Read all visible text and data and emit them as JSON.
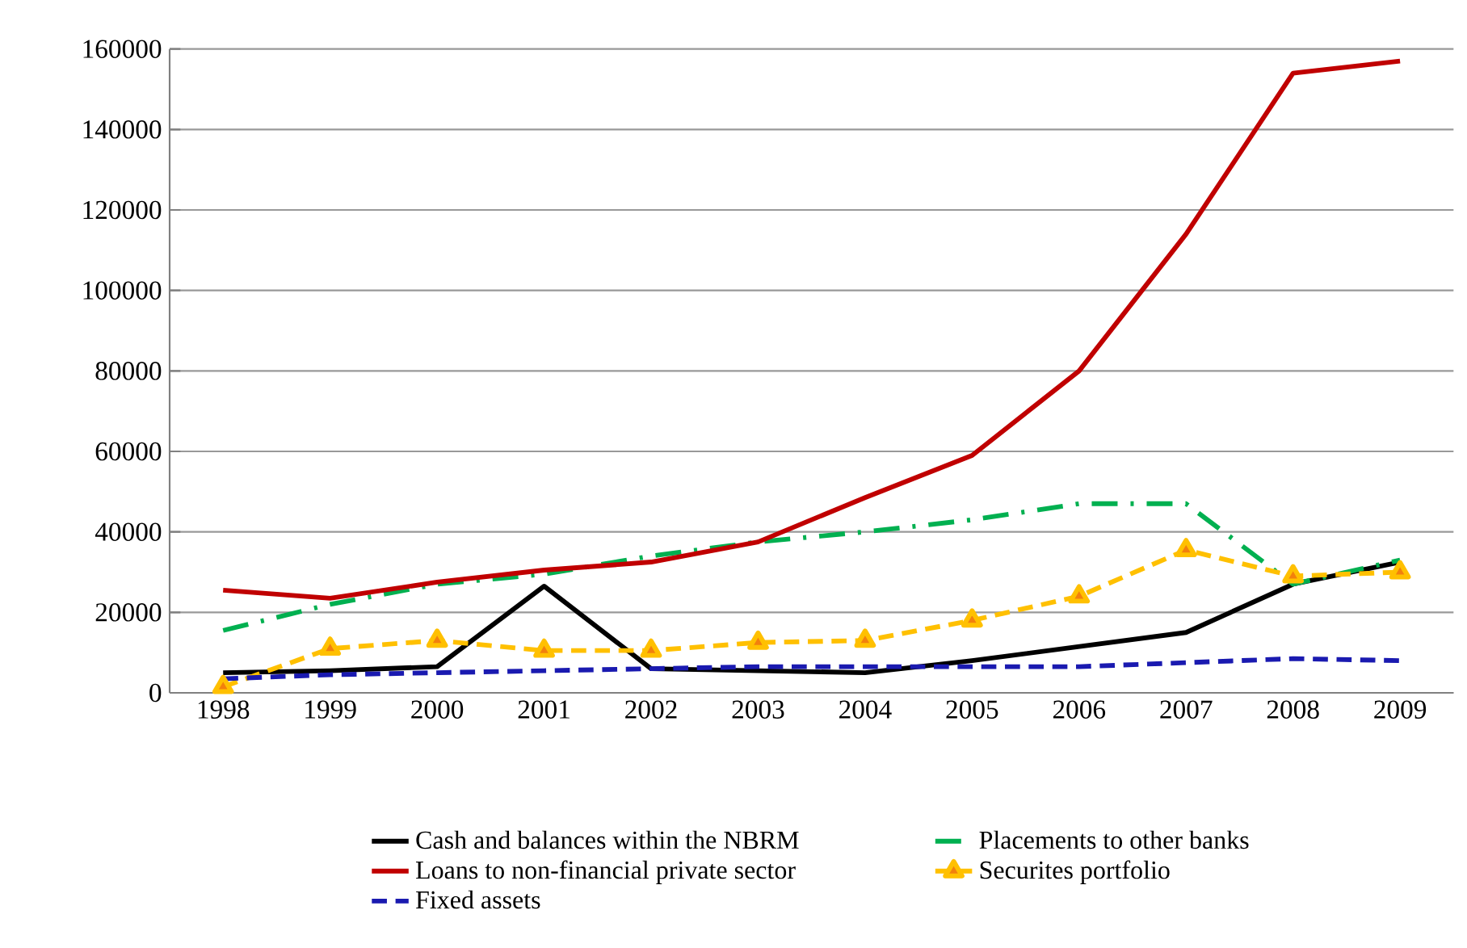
{
  "chart_data": {
    "type": "line",
    "categories": [
      "1998",
      "1999",
      "2000",
      "2001",
      "2002",
      "2003",
      "2004",
      "2005",
      "2006",
      "2007",
      "2008",
      "2009"
    ],
    "ylim": [
      0,
      160000
    ],
    "yticks": [
      0,
      20000,
      40000,
      60000,
      80000,
      100000,
      120000,
      140000,
      160000
    ],
    "grid": "y",
    "legend": "bottom",
    "series": [
      {
        "name": "Cash and balances within the NBRM",
        "color": "#000000",
        "line_style": "solid",
        "values": [
          5000,
          5500,
          6500,
          26500,
          6000,
          5500,
          5000,
          8000,
          11500,
          15000,
          27000,
          32500
        ]
      },
      {
        "name": "Placements to other banks",
        "color": "#00b050",
        "line_style": "dashdot",
        "values": [
          15500,
          22000,
          27000,
          29500,
          34000,
          37500,
          40000,
          43000,
          47000,
          47000,
          27000,
          33000
        ]
      },
      {
        "name": "Loans to non-financial private sector",
        "color": "#c00000",
        "line_style": "solid",
        "values": [
          25500,
          23500,
          27500,
          30500,
          32500,
          37500,
          48500,
          59000,
          80000,
          114000,
          154000,
          157000
        ]
      },
      {
        "name": "Securites portfolio",
        "color": "#ffc000",
        "line_style": "dashed",
        "marker": "triangle",
        "values": [
          1500,
          11000,
          13000,
          10500,
          10500,
          12500,
          13000,
          18000,
          24000,
          35500,
          29000,
          30000
        ]
      },
      {
        "name": "Fixed assets",
        "color": "#1a1ab0",
        "line_style": "dashed",
        "values": [
          3500,
          4500,
          5000,
          5500,
          6000,
          6500,
          6500,
          6500,
          6500,
          7500,
          8500,
          8000
        ]
      }
    ]
  }
}
